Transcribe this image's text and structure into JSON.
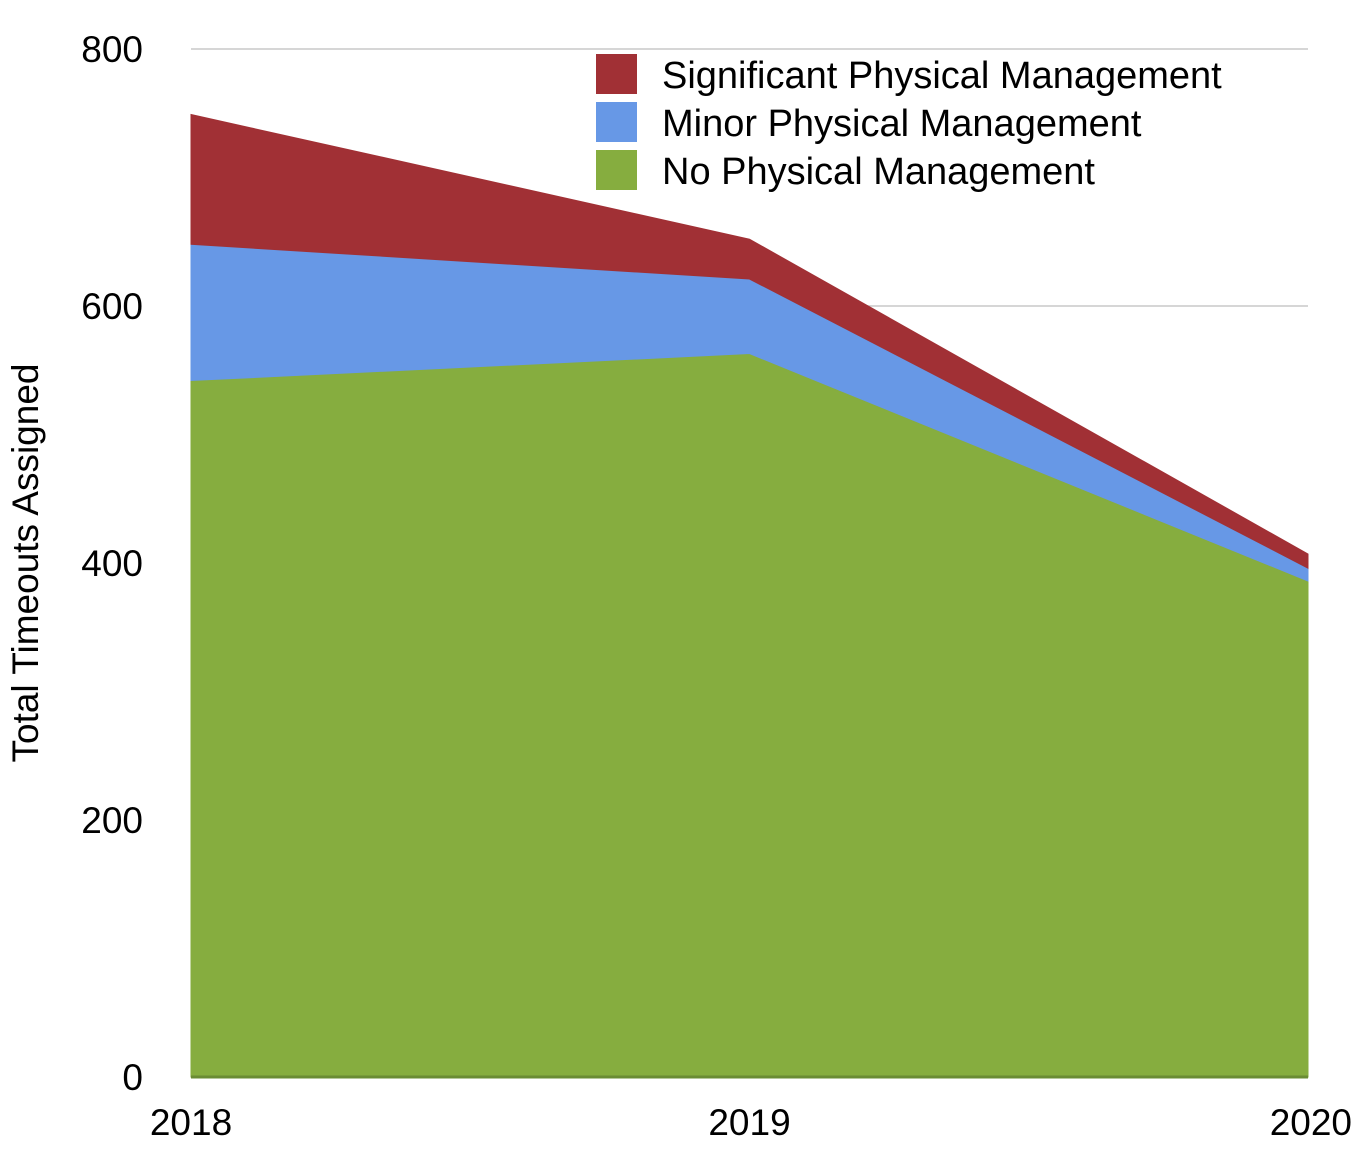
{
  "chart_data": {
    "type": "area",
    "stacked": true,
    "title": "",
    "xlabel": "",
    "ylabel": "Total Timeouts Assigned",
    "categories": [
      "2018",
      "2019",
      "2020"
    ],
    "ylim": [
      0,
      800
    ],
    "yticks": [
      0,
      200,
      400,
      600,
      800
    ],
    "grid": true,
    "legend_position": "top-right",
    "series": [
      {
        "name": "No Physical Management",
        "values": [
          542,
          563,
          386
        ],
        "color": "#86ad3f"
      },
      {
        "name": "Minor Physical Management",
        "values": [
          106,
          58,
          10
        ],
        "color": "#6798e6"
      },
      {
        "name": "Significant Physical Management",
        "values": [
          101,
          31,
          11
        ],
        "color": "#a13035"
      }
    ],
    "legend_order": [
      "Significant Physical Management",
      "Minor Physical Management",
      "No Physical Management"
    ]
  }
}
